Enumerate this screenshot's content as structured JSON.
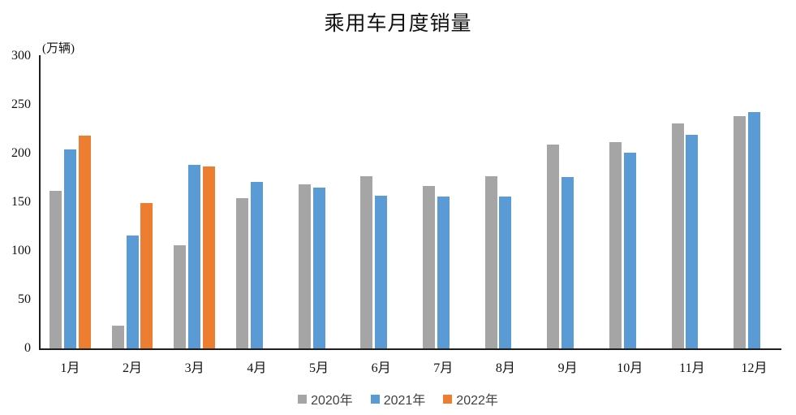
{
  "chart_data": {
    "type": "bar",
    "title": "乘用车月度销量",
    "unit_label": "(万辆)",
    "categories": [
      "1月",
      "2月",
      "3月",
      "4月",
      "5月",
      "6月",
      "7月",
      "8月",
      "9月",
      "10月",
      "11月",
      "12月"
    ],
    "series": [
      {
        "name": "2020年",
        "color": "#A5A5A5",
        "values": [
          161.5,
          23,
          105.5,
          154,
          168,
          177,
          167,
          176.5,
          209,
          211.5,
          230.5,
          238.5
        ]
      },
      {
        "name": "2021年",
        "color": "#5B9BD5",
        "values": [
          204.5,
          115.5,
          188,
          170.5,
          165,
          157,
          155.5,
          155.5,
          175.5,
          201,
          219.5,
          242.5
        ]
      },
      {
        "name": "2022年",
        "color": "#ED7D31",
        "values": [
          218.5,
          149,
          187,
          null,
          null,
          null,
          null,
          null,
          null,
          null,
          null,
          null
        ]
      }
    ],
    "yticks": [
      0,
      50,
      100,
      150,
      200,
      250,
      300
    ],
    "ylim": [
      0,
      300
    ],
    "grid": false,
    "legend_position": "bottom"
  }
}
